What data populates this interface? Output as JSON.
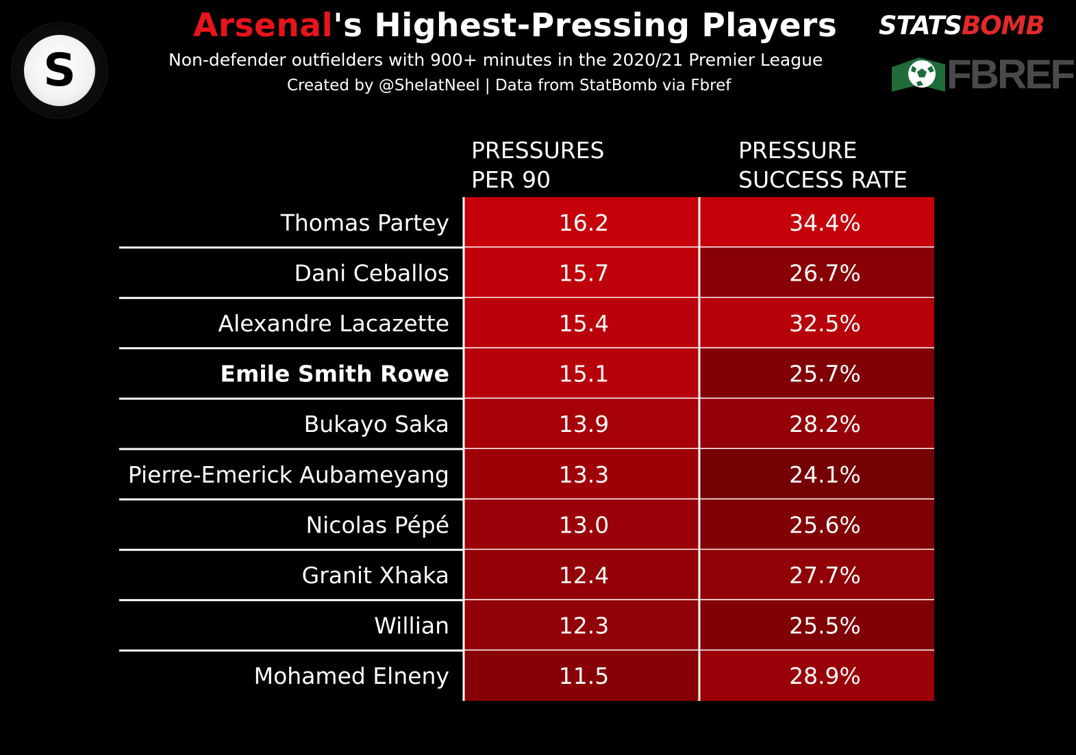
{
  "header": {
    "title_team": "Arsenal",
    "title_rest": "'s Highest-Pressing Players",
    "subtitle": "Non-defender outfielders with 900+ minutes in the 2020/21 Premier League",
    "credit": "Created by @ShelatNeel | Data from StatBomb via Fbref",
    "brand_statsbomb_1": "STATS",
    "brand_statsbomb_2": "BOMB",
    "brand_fbref": "FBREF",
    "logo_letter": "S"
  },
  "colors": {
    "background": "#000000",
    "team_red": "#e8141c",
    "cell_high": "#c5000b",
    "cell_low": "#6c0003",
    "divider": "#ffffff"
  },
  "chart_data": {
    "type": "table",
    "columns": [
      {
        "line1": "PRESSURES",
        "line2": "PER 90"
      },
      {
        "line1": "PRESSURE",
        "line2": "SUCCESS RATE"
      }
    ],
    "rows": [
      {
        "player": "Thomas Partey",
        "pressures_per_90": "16.2",
        "success_rate": "34.4%",
        "highlight": false
      },
      {
        "player": "Dani Ceballos",
        "pressures_per_90": "15.7",
        "success_rate": "26.7%",
        "highlight": false
      },
      {
        "player": "Alexandre Lacazette",
        "pressures_per_90": "15.4",
        "success_rate": "32.5%",
        "highlight": false
      },
      {
        "player": "Emile Smith Rowe",
        "pressures_per_90": "15.1",
        "success_rate": "25.7%",
        "highlight": true
      },
      {
        "player": "Bukayo Saka",
        "pressures_per_90": "13.9",
        "success_rate": "28.2%",
        "highlight": false
      },
      {
        "player": "Pierre-Emerick Aubameyang",
        "pressures_per_90": "13.3",
        "success_rate": "24.1%",
        "highlight": false
      },
      {
        "player": "Nicolas Pépé",
        "pressures_per_90": "13.0",
        "success_rate": "25.6%",
        "highlight": false
      },
      {
        "player": "Granit Xhaka",
        "pressures_per_90": "12.4",
        "success_rate": "27.7%",
        "highlight": false
      },
      {
        "player": "Willian",
        "pressures_per_90": "12.3",
        "success_rate": "25.5%",
        "highlight": false
      },
      {
        "player": "Mohamed Elneny",
        "pressures_per_90": "11.5",
        "success_rate": "28.9%",
        "highlight": false
      }
    ]
  }
}
